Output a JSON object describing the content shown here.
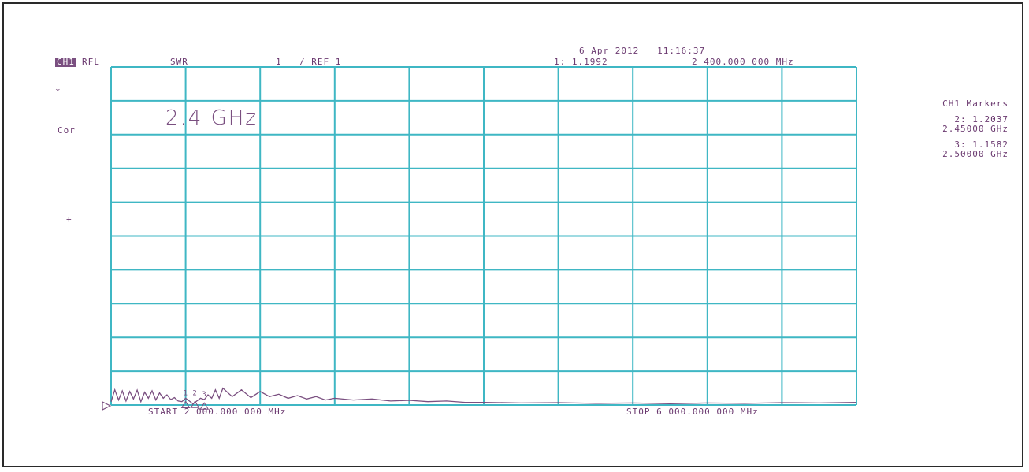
{
  "header": {
    "channel": "CH1",
    "format": "RFL",
    "mode": "SWR",
    "scale": "1",
    "ref": "/ REF 1",
    "datetime": "6 Apr 2012   11:16:37",
    "marker_readout": "1: 1.1992",
    "marker_freq": "2 400.000 000 MHz"
  },
  "left_annotations": {
    "star": "*",
    "cor": "Cor",
    "plus": "+"
  },
  "annotation": "2.4 GHz",
  "footer": {
    "start": "START 2 000.000 000 MHz",
    "stop": "STOP 6 000.000 000 MHz"
  },
  "markers_panel": {
    "title": "CH1 Markers",
    "items": [
      {
        "value": "2: 1.2037",
        "freq": "2.45000 GHz"
      },
      {
        "value": "3: 1.1582",
        "freq": "2.50000 GHz"
      }
    ]
  },
  "colors": {
    "grid": "#3fb7c4",
    "trace": "#7a4f80",
    "text": "#6b3a70"
  },
  "chart_data": {
    "type": "line",
    "title": "",
    "xlabel": "",
    "ylabel": "",
    "xlim": [
      2000,
      6000
    ],
    "ylim": [
      1,
      11
    ],
    "grid": true,
    "series": [
      {
        "name": "",
        "x": [
          2000,
          2020,
          2040,
          2060,
          2080,
          2100,
          2120,
          2140,
          2160,
          2180,
          2200,
          2220,
          2240,
          2260,
          2280,
          2300,
          2320,
          2340,
          2360,
          2380,
          2400,
          2420,
          2440,
          2460,
          2480,
          2500,
          2520,
          2540,
          2560,
          2580,
          2600,
          2650,
          2700,
          2750,
          2800,
          2850,
          2900,
          2950,
          3000,
          3050,
          3100,
          3150,
          3200,
          3300,
          3400,
          3500,
          3600,
          3700,
          3800,
          3900,
          4000,
          4200,
          4400,
          4600,
          4800,
          5000,
          5200,
          5400,
          5600,
          5800,
          6000
        ],
        "values": [
          1.1,
          1.45,
          1.15,
          1.42,
          1.12,
          1.4,
          1.18,
          1.44,
          1.1,
          1.38,
          1.2,
          1.42,
          1.15,
          1.36,
          1.2,
          1.3,
          1.16,
          1.22,
          1.12,
          1.1,
          1.2,
          1.12,
          1.03,
          1.12,
          1.2,
          1.16,
          1.3,
          1.2,
          1.45,
          1.2,
          1.5,
          1.25,
          1.45,
          1.22,
          1.4,
          1.25,
          1.32,
          1.2,
          1.28,
          1.18,
          1.25,
          1.15,
          1.2,
          1.15,
          1.18,
          1.12,
          1.14,
          1.1,
          1.12,
          1.08,
          1.08,
          1.06,
          1.07,
          1.05,
          1.06,
          1.04,
          1.06,
          1.05,
          1.07,
          1.06,
          1.08
        ]
      }
    ],
    "markers": [
      {
        "id": 1,
        "x": 2400,
        "y": 1.1992
      },
      {
        "id": 2,
        "x": 2450,
        "y": 1.2037
      },
      {
        "id": 3,
        "x": 2500,
        "y": 1.1582
      }
    ]
  }
}
